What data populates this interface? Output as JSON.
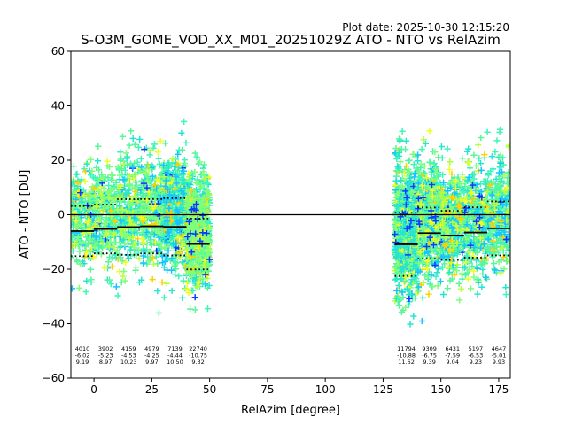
{
  "plot_date": "Plot date: 2025-10-30 12:15:20",
  "chart_data": {
    "type": "scatter",
    "title": "S-O3M_GOME_VOD_XX_M01_20251029Z ATO - NTO vs RelAzim",
    "xlabel": "RelAzim [degree]",
    "ylabel": "ATO - NTO [DU]",
    "xlim": [
      -10,
      180
    ],
    "ylim": [
      -60,
      60
    ],
    "x_ticks": [
      0,
      25,
      50,
      75,
      100,
      125,
      150,
      175
    ],
    "y_ticks": [
      -60,
      -40,
      -20,
      0,
      20,
      40,
      60
    ],
    "x_tick_labels": [
      "0",
      "25",
      "50",
      "75",
      "100",
      "125",
      "150",
      "175"
    ],
    "y_tick_labels": [
      "−60",
      "−40",
      "−20",
      "0",
      "20",
      "40",
      "60"
    ],
    "zero_line": 0,
    "bin_stats": [
      {
        "x0": -10,
        "x1": 0,
        "count": "4010",
        "mean": "-6.02",
        "std": "9.19"
      },
      {
        "x0": 0,
        "x1": 10,
        "count": "3902",
        "mean": "-5.23",
        "std": "8.97"
      },
      {
        "x0": 10,
        "x1": 20,
        "count": "4159",
        "mean": "-4.53",
        "std": "10.23"
      },
      {
        "x0": 20,
        "x1": 30,
        "count": "4979",
        "mean": "-4.25",
        "std": "9.97"
      },
      {
        "x0": 30,
        "x1": 40,
        "count": "7139",
        "mean": "-4.44",
        "std": "10.50"
      },
      {
        "x0": 40,
        "x1": 50,
        "count": "22740",
        "mean": "-10.75",
        "std": "9.32"
      },
      {
        "x0": 130,
        "x1": 140,
        "count": "11794",
        "mean": "-10.88",
        "std": "11.62"
      },
      {
        "x0": 140,
        "x1": 150,
        "count": "9309",
        "mean": "-6.75",
        "std": "9.39"
      },
      {
        "x0": 150,
        "x1": 160,
        "count": "6431",
        "mean": "-7.59",
        "std": "9.04"
      },
      {
        "x0": 160,
        "x1": 170,
        "count": "5197",
        "mean": "-6.53",
        "std": "9.23"
      },
      {
        "x0": 170,
        "x1": 180,
        "count": "4647",
        "mean": "-5.01",
        "std": "9.93"
      }
    ],
    "point_colors": [
      "#3ff5b8",
      "#5cf59a",
      "#7dff7a",
      "#27e6d0",
      "#16c4ff",
      "#b8ff3f",
      "#f0ff20",
      "#ffd000",
      "#0a3cff"
    ]
  }
}
